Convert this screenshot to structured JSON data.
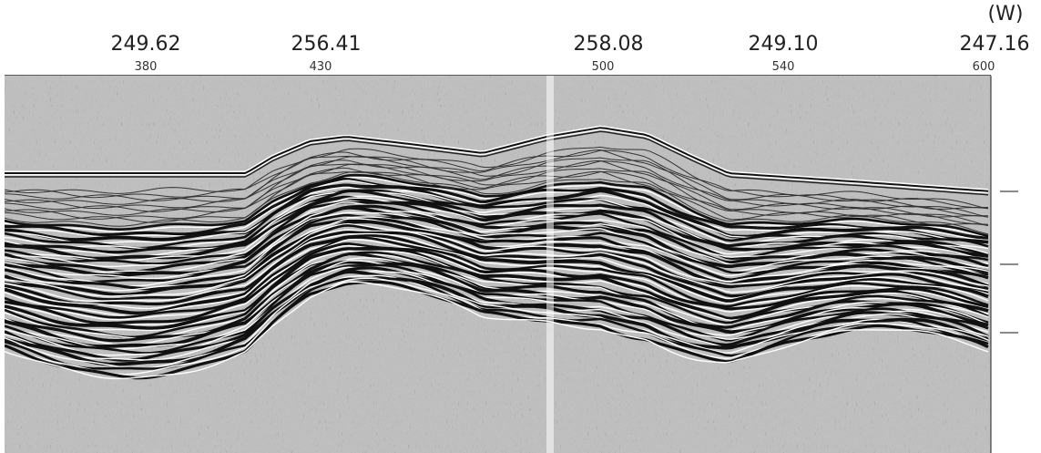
{
  "header": {
    "direction": "(W)",
    "stations": [
      {
        "label": "249.62",
        "shot": "380"
      },
      {
        "label": "256.41",
        "shot": "430"
      },
      {
        "label": "258.08",
        "shot": "500"
      },
      {
        "label": "249.10",
        "shot": "540"
      },
      {
        "label": "247.16",
        "shot": "600"
      }
    ]
  }
}
